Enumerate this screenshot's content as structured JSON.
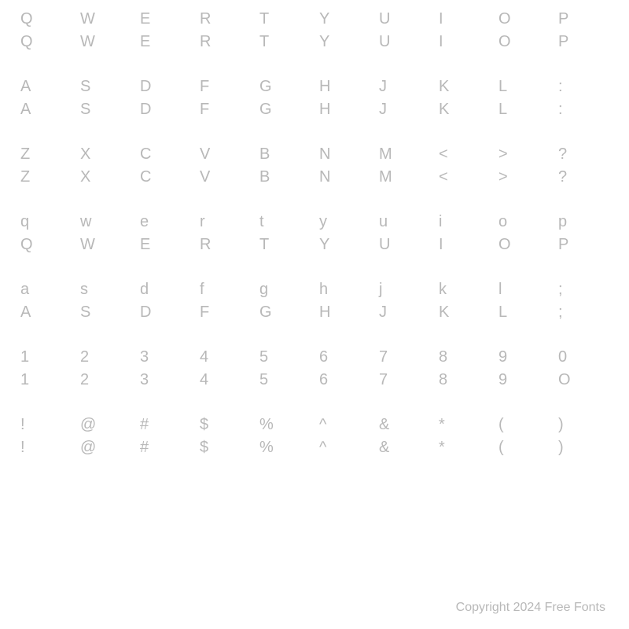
{
  "rows": [
    {
      "labels": [
        "Q",
        "W",
        "E",
        "R",
        "T",
        "Y",
        "U",
        "I",
        "O",
        "P"
      ],
      "glyphs": [
        "Q",
        "W",
        "E",
        "R",
        "T",
        "Y",
        "U",
        "I",
        "O",
        "P"
      ]
    },
    {
      "labels": [
        "A",
        "S",
        "D",
        "F",
        "G",
        "H",
        "J",
        "K",
        "L",
        ":"
      ],
      "glyphs": [
        "A",
        "S",
        "D",
        "F",
        "G",
        "H",
        "J",
        "K",
        "L",
        ":"
      ]
    },
    {
      "labels": [
        "Z",
        "X",
        "C",
        "V",
        "B",
        "N",
        "M",
        "<",
        ">",
        "?"
      ],
      "glyphs": [
        "Z",
        "X",
        "C",
        "V",
        "B",
        "N",
        "M",
        "<",
        ">",
        "?"
      ]
    },
    {
      "labels": [
        "q",
        "w",
        "e",
        "r",
        "t",
        "y",
        "u",
        "i",
        "o",
        "p"
      ],
      "glyphs": [
        "Q",
        "W",
        "E",
        "R",
        "T",
        "Y",
        "U",
        "I",
        "O",
        "P"
      ]
    },
    {
      "labels": [
        "a",
        "s",
        "d",
        "f",
        "g",
        "h",
        "j",
        "k",
        "l",
        ";"
      ],
      "glyphs": [
        "A",
        "S",
        "D",
        "F",
        "G",
        "H",
        "J",
        "K",
        "L",
        ";"
      ]
    },
    {
      "labels": [
        "1",
        "2",
        "3",
        "4",
        "5",
        "6",
        "7",
        "8",
        "9",
        "0"
      ],
      "glyphs": [
        "1",
        "2",
        "3",
        "4",
        "5",
        "6",
        "7",
        "8",
        "9",
        "O"
      ]
    },
    {
      "labels": [
        "!",
        "@",
        "#",
        "$",
        "%",
        "^",
        "&",
        "*",
        "(",
        ")"
      ],
      "glyphs": [
        "!",
        "@",
        "#",
        "$",
        "%",
        "^",
        "&",
        "*",
        "(",
        ")"
      ]
    }
  ],
  "styling": {
    "label_color": "#b8b8b8",
    "glyph_color": "#b8b8b8",
    "label_fontsize": 20,
    "glyph_fontsize": 20,
    "columns": 10,
    "background": "#ffffff"
  },
  "footer": "Copyright 2024 Free Fonts"
}
